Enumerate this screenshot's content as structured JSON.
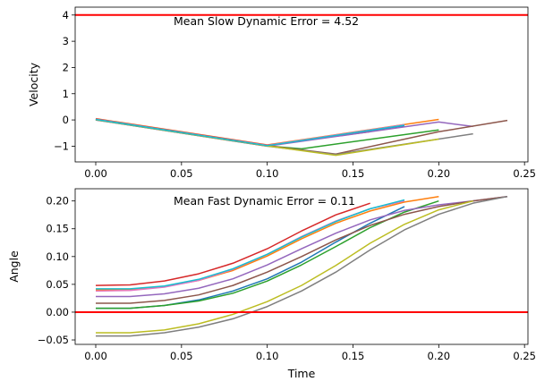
{
  "chart_data": [
    {
      "type": "line",
      "annotation": "Mean Slow Dynamic Error = 4.52",
      "ylabel": "Velocity",
      "xlabel": "",
      "xlim": [
        -0.012,
        0.252
      ],
      "ylim": [
        -1.6,
        4.3
      ],
      "xticks": [
        "0.00",
        "0.05",
        "0.10",
        "0.15",
        "0.20",
        "0.25"
      ],
      "xtick_values": [
        0,
        0.05,
        0.1,
        0.15,
        0.2,
        0.25
      ],
      "yticks": [
        "−1",
        "0",
        "1",
        "2",
        "3",
        "4"
      ],
      "ytick_values": [
        -1,
        0,
        1,
        2,
        3,
        4
      ],
      "reference_line": {
        "y": 4,
        "color": "#ff0000"
      },
      "grid": false,
      "series": [
        {
          "color": "#1f77b4",
          "x": [
            0,
            0.1,
            0.18
          ],
          "y": [
            0.03,
            -0.97,
            -0.22
          ]
        },
        {
          "color": "#ff7f0e",
          "x": [
            0,
            0.1,
            0.2
          ],
          "y": [
            0.05,
            -0.95,
            0.02
          ]
        },
        {
          "color": "#2ca02c",
          "x": [
            0,
            0.1,
            0.12,
            0.2
          ],
          "y": [
            0.01,
            -0.99,
            -1.1,
            -0.38
          ]
        },
        {
          "color": "#d62728",
          "x": [
            0,
            0.1,
            0.16
          ],
          "y": [
            0.04,
            -0.96,
            -0.45
          ]
        },
        {
          "color": "#9467bd",
          "x": [
            0,
            0.1,
            0.2,
            0.22
          ],
          "y": [
            0.0,
            -1.0,
            -0.08,
            -0.25
          ]
        },
        {
          "color": "#8c564b",
          "x": [
            0,
            0.1,
            0.14,
            0.2,
            0.24
          ],
          "y": [
            0.02,
            -0.98,
            -1.3,
            -0.45,
            -0.02
          ]
        },
        {
          "color": "#e377c2",
          "x": [
            0,
            0.1,
            0.18
          ],
          "y": [
            0.03,
            -0.97,
            -0.18
          ]
        },
        {
          "color": "#7f7f7f",
          "x": [
            0,
            0.1,
            0.14,
            0.22
          ],
          "y": [
            0.0,
            -1.0,
            -1.32,
            -0.53
          ]
        },
        {
          "color": "#bcbd22",
          "x": [
            0,
            0.1,
            0.14,
            0.2
          ],
          "y": [
            0.01,
            -0.99,
            -1.35,
            -0.73
          ]
        },
        {
          "color": "#17becf",
          "x": [
            0,
            0.1,
            0.18
          ],
          "y": [
            0.02,
            -0.98,
            -0.2
          ]
        }
      ]
    },
    {
      "type": "line",
      "annotation": "Mean Fast Dynamic Error = 0.11",
      "ylabel": "Angle",
      "xlabel": "Time",
      "xlim": [
        -0.012,
        0.252
      ],
      "ylim": [
        -0.058,
        0.222
      ],
      "xticks": [
        "0.00",
        "0.05",
        "0.10",
        "0.15",
        "0.20",
        "0.25"
      ],
      "xtick_values": [
        0,
        0.05,
        0.1,
        0.15,
        0.2,
        0.25
      ],
      "yticks": [
        "−0.05",
        "0.00",
        "0.05",
        "0.10",
        "0.15",
        "0.20"
      ],
      "ytick_values": [
        -0.05,
        0,
        0.05,
        0.1,
        0.15,
        0.2
      ],
      "reference_line": {
        "y": 0,
        "color": "#ff0000"
      },
      "grid": false,
      "series": [
        {
          "color": "#1f77b4",
          "x": [
            0,
            0.02,
            0.04,
            0.06,
            0.08,
            0.1,
            0.12,
            0.14,
            0.16,
            0.18
          ],
          "y": [
            0.007,
            0.007,
            0.012,
            0.022,
            0.038,
            0.06,
            0.09,
            0.126,
            0.16,
            0.19
          ]
        },
        {
          "color": "#ff7f0e",
          "x": [
            0,
            0.02,
            0.04,
            0.06,
            0.08,
            0.1,
            0.12,
            0.14,
            0.16,
            0.18,
            0.2
          ],
          "y": [
            0.04,
            0.041,
            0.046,
            0.057,
            0.075,
            0.101,
            0.132,
            0.16,
            0.182,
            0.198,
            0.208
          ]
        },
        {
          "color": "#2ca02c",
          "x": [
            0,
            0.02,
            0.04,
            0.06,
            0.08,
            0.1,
            0.12,
            0.14,
            0.16,
            0.18,
            0.2
          ],
          "y": [
            0.007,
            0.007,
            0.012,
            0.02,
            0.034,
            0.056,
            0.085,
            0.118,
            0.152,
            0.18,
            0.2
          ]
        },
        {
          "color": "#d62728",
          "x": [
            0,
            0.02,
            0.04,
            0.06,
            0.08,
            0.1,
            0.12,
            0.14,
            0.16
          ],
          "y": [
            0.048,
            0.049,
            0.056,
            0.069,
            0.088,
            0.114,
            0.146,
            0.175,
            0.196
          ]
        },
        {
          "color": "#9467bd",
          "x": [
            0,
            0.02,
            0.04,
            0.06,
            0.08,
            0.1,
            0.12,
            0.14,
            0.16,
            0.18,
            0.2,
            0.22,
            0.24
          ],
          "y": [
            0.028,
            0.028,
            0.033,
            0.043,
            0.06,
            0.085,
            0.114,
            0.142,
            0.166,
            0.183,
            0.193,
            0.2,
            0.208
          ]
        },
        {
          "color": "#8c564b",
          "x": [
            0,
            0.02,
            0.04,
            0.06,
            0.08,
            0.1,
            0.12,
            0.14,
            0.16,
            0.18,
            0.2,
            0.22,
            0.24
          ],
          "y": [
            0.016,
            0.016,
            0.021,
            0.031,
            0.048,
            0.072,
            0.1,
            0.13,
            0.156,
            0.176,
            0.19,
            0.2,
            0.208
          ]
        },
        {
          "color": "#e377c2",
          "x": [
            0,
            0.02,
            0.04,
            0.06,
            0.08,
            0.1,
            0.12,
            0.14,
            0.16,
            0.18
          ],
          "y": [
            0.038,
            0.039,
            0.045,
            0.057,
            0.077,
            0.104,
            0.136,
            0.164,
            0.186,
            0.2
          ]
        },
        {
          "color": "#7f7f7f",
          "x": [
            0,
            0.02,
            0.04,
            0.06,
            0.08,
            0.1,
            0.12,
            0.14,
            0.16,
            0.18,
            0.2,
            0.22,
            0.24
          ],
          "y": [
            -0.043,
            -0.043,
            -0.037,
            -0.027,
            -0.012,
            0.01,
            0.038,
            0.072,
            0.112,
            0.148,
            0.176,
            0.196,
            0.208
          ]
        },
        {
          "color": "#bcbd22",
          "x": [
            0,
            0.02,
            0.04,
            0.06,
            0.08,
            0.1,
            0.12,
            0.14,
            0.16,
            0.18,
            0.2,
            0.22
          ],
          "y": [
            -0.037,
            -0.037,
            -0.032,
            -0.021,
            -0.004,
            0.019,
            0.048,
            0.084,
            0.124,
            0.158,
            0.184,
            0.2
          ]
        },
        {
          "color": "#17becf",
          "x": [
            0,
            0.02,
            0.04,
            0.06,
            0.08,
            0.1,
            0.12,
            0.14,
            0.16,
            0.18
          ],
          "y": [
            0.042,
            0.042,
            0.047,
            0.059,
            0.078,
            0.104,
            0.135,
            0.163,
            0.186,
            0.202
          ]
        }
      ]
    }
  ]
}
